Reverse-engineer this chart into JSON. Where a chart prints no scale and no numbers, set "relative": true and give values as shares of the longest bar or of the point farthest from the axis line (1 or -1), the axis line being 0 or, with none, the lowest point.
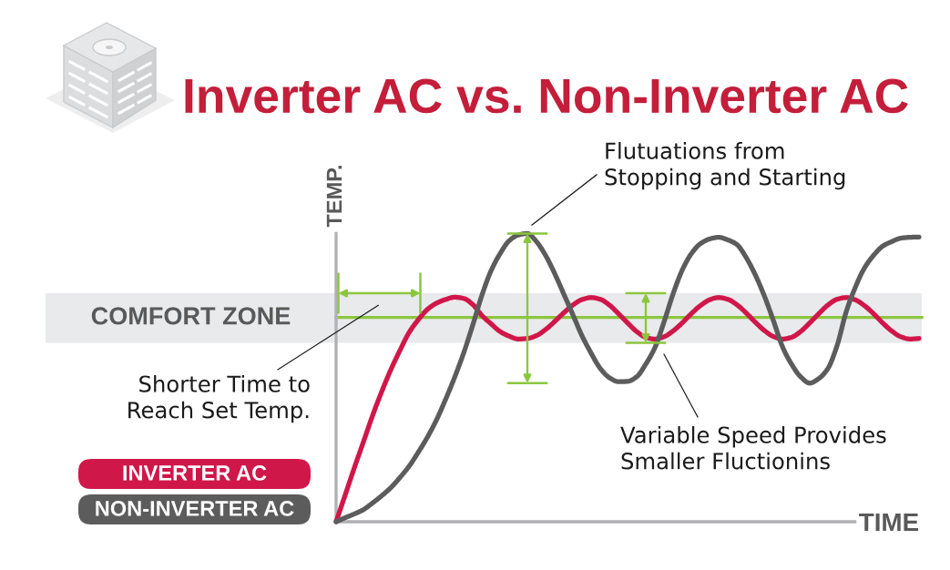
{
  "chart_data": {
    "type": "line",
    "title": "Inverter AC vs. Non-Inverter AC",
    "xlabel": "TIME",
    "ylabel": "TEMP.",
    "relative": true,
    "categories": [
      null,
      null,
      null,
      null,
      null,
      null,
      null,
      null,
      null,
      null,
      null,
      null,
      null,
      null,
      null,
      null,
      null,
      null,
      null,
      null,
      null,
      null,
      null,
      null,
      null,
      null,
      null,
      null,
      null,
      null,
      null,
      null,
      null,
      null,
      null,
      null,
      null,
      null,
      null,
      null,
      null,
      null,
      null,
      null,
      null,
      null,
      null,
      null,
      null,
      null,
      null,
      null,
      null,
      null,
      null,
      null,
      null,
      null,
      null,
      null,
      null,
      null,
      null,
      null,
      null
    ],
    "series": [
      {
        "name": "INVERTER AC",
        "color": "#d0174a",
        "values": [
          0.0,
          0.093,
          0.187,
          0.277,
          0.368,
          0.451,
          0.527,
          0.594,
          0.656,
          0.7,
          0.736,
          0.758,
          0.771,
          0.779,
          0.775,
          0.754,
          0.716,
          0.687,
          0.66,
          0.644,
          0.634,
          0.636,
          0.646,
          0.667,
          0.695,
          0.725,
          0.752,
          0.771,
          0.778,
          0.772,
          0.752,
          0.722,
          0.69,
          0.66,
          0.64,
          0.634,
          0.642,
          0.662,
          0.69,
          0.722,
          0.75,
          0.77,
          0.778,
          0.772,
          0.753,
          0.725,
          0.693,
          0.664,
          0.643,
          0.634,
          0.64,
          0.66,
          0.69,
          0.722,
          0.752,
          0.772,
          0.778,
          0.77,
          0.75,
          0.722,
          0.69,
          0.662,
          0.642,
          0.634,
          0.636
        ]
      },
      {
        "name": "NON-INVERTER AC",
        "color": "#5c5c5c",
        "values": [
          0.0,
          0.014,
          0.027,
          0.042,
          0.065,
          0.09,
          0.118,
          0.153,
          0.192,
          0.24,
          0.292,
          0.352,
          0.423,
          0.5,
          0.585,
          0.682,
          0.785,
          0.87,
          0.93,
          0.975,
          0.995,
          1.0,
          0.972,
          0.924,
          0.861,
          0.79,
          0.718,
          0.645,
          0.585,
          0.532,
          0.5,
          0.486,
          0.487,
          0.503,
          0.547,
          0.604,
          0.693,
          0.791,
          0.873,
          0.93,
          0.965,
          0.981,
          0.987,
          0.978,
          0.962,
          0.918,
          0.858,
          0.785,
          0.699,
          0.608,
          0.547,
          0.503,
          0.481,
          0.497,
          0.532,
          0.611,
          0.728,
          0.813,
          0.88,
          0.924,
          0.956,
          0.972,
          0.984,
          0.987,
          0.988
        ]
      }
    ],
    "bands": [
      {
        "axis": "y",
        "from": 0.621,
        "to": 0.793,
        "label": "COMFORT ZONE",
        "color": "#e9eaec"
      }
    ],
    "ref_lines": [
      {
        "axis": "y",
        "value": 0.709,
        "color": "#8cc63f"
      }
    ],
    "annotations": [
      "Flutuations from\nStopping and Starting",
      "Shorter Time to\nReach Set Temp.",
      "Variable Speed Provides\nSmaller Fluctionins"
    ],
    "legend": "bottom left",
    "line_style": "solid"
  }
}
